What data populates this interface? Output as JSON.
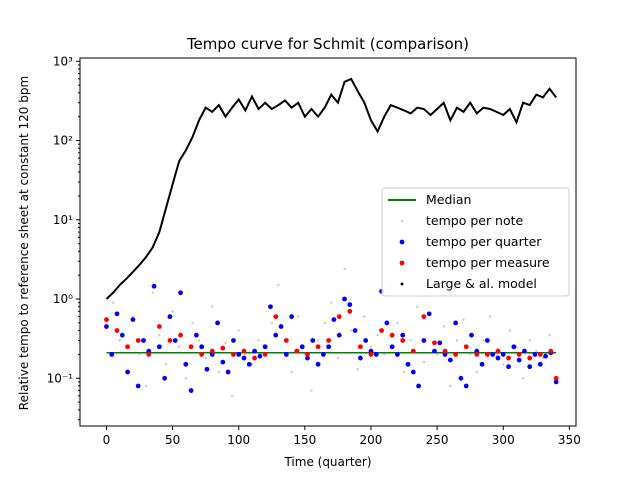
{
  "chart_data": {
    "type": "scatter",
    "title": "Tempo curve for Schmit (comparison)",
    "xlabel": "Time (quarter)",
    "ylabel": "Relative tempo to reference sheet at constant 120 bpm",
    "xlim": [
      -20,
      355
    ],
    "ylim": [
      0.025,
      1100
    ],
    "yscale": "log",
    "xticks": [
      0,
      50,
      100,
      150,
      200,
      250,
      300,
      350
    ],
    "xtick_labels": [
      "0",
      "50",
      "100",
      "150",
      "200",
      "250",
      "300",
      "350"
    ],
    "yticks": [
      0.1,
      1,
      10,
      100,
      1000
    ],
    "ytick_labels": [
      "10⁻¹",
      "10⁰",
      "10¹",
      "10²",
      "10³"
    ],
    "legend_position": "center-right",
    "median": 0.21,
    "series": [
      {
        "name": "Median",
        "kind": "line",
        "color": "#008000",
        "x": [
          0,
          340
        ],
        "y": [
          0.21,
          0.21
        ]
      },
      {
        "name": "tempo per note",
        "kind": "scatter",
        "color": "#c8c8c8",
        "x": [
          0,
          5,
          10,
          15,
          20,
          25,
          30,
          35,
          40,
          45,
          50,
          55,
          60,
          65,
          70,
          75,
          80,
          85,
          90,
          95,
          100,
          105,
          110,
          115,
          120,
          125,
          130,
          135,
          140,
          145,
          150,
          155,
          160,
          165,
          170,
          175,
          180,
          185,
          190,
          195,
          200,
          205,
          210,
          215,
          220,
          225,
          230,
          235,
          240,
          245,
          250,
          255,
          260,
          265,
          270,
          275,
          280,
          285,
          290,
          295,
          300,
          305,
          310,
          315,
          320,
          325,
          330,
          335,
          340
        ],
        "y": [
          0.5,
          0.9,
          0.3,
          0.12,
          0.6,
          0.2,
          0.08,
          1.2,
          0.35,
          0.15,
          0.7,
          0.25,
          0.1,
          0.5,
          0.3,
          0.18,
          0.8,
          0.12,
          0.28,
          0.06,
          0.4,
          0.2,
          0.15,
          0.3,
          0.2,
          0.5,
          1.5,
          0.3,
          0.12,
          0.6,
          0.2,
          0.07,
          0.3,
          0.5,
          0.9,
          0.18,
          2.4,
          0.4,
          0.13,
          0.6,
          0.25,
          0.35,
          0.2,
          1.5,
          0.5,
          0.12,
          0.3,
          0.8,
          0.16,
          1.2,
          0.2,
          0.45,
          0.08,
          0.3,
          0.55,
          0.2,
          0.12,
          0.3,
          0.6,
          0.2,
          0.15,
          0.4,
          0.25,
          0.1,
          0.3,
          0.22,
          0.18,
          0.35,
          0.1
        ]
      },
      {
        "name": "tempo per quarter",
        "kind": "scatter",
        "color": "#0000ff",
        "x": [
          0,
          4,
          8,
          12,
          16,
          20,
          24,
          28,
          32,
          36,
          40,
          44,
          48,
          52,
          56,
          60,
          64,
          68,
          72,
          76,
          80,
          84,
          88,
          92,
          96,
          100,
          104,
          108,
          112,
          116,
          120,
          124,
          128,
          132,
          136,
          140,
          144,
          148,
          152,
          156,
          160,
          164,
          168,
          172,
          176,
          180,
          184,
          188,
          192,
          196,
          200,
          204,
          208,
          212,
          216,
          220,
          224,
          228,
          232,
          236,
          240,
          244,
          248,
          252,
          256,
          260,
          264,
          268,
          272,
          276,
          280,
          284,
          288,
          292,
          296,
          300,
          304,
          308,
          312,
          316,
          320,
          324,
          328,
          332,
          336,
          340
        ],
        "y": [
          0.45,
          0.2,
          0.65,
          0.35,
          0.12,
          0.55,
          0.08,
          0.3,
          0.22,
          1.45,
          0.25,
          0.1,
          0.6,
          0.3,
          1.2,
          0.15,
          0.07,
          0.35,
          0.25,
          0.13,
          0.2,
          0.5,
          0.16,
          0.12,
          0.3,
          0.2,
          0.18,
          0.15,
          0.22,
          0.19,
          0.25,
          0.8,
          0.35,
          0.45,
          0.2,
          0.6,
          0.22,
          0.25,
          0.18,
          0.3,
          0.15,
          0.2,
          0.25,
          0.55,
          0.35,
          1.0,
          0.85,
          0.4,
          0.18,
          0.3,
          0.22,
          0.2,
          1.25,
          0.5,
          0.25,
          0.2,
          0.35,
          0.15,
          0.12,
          0.08,
          0.3,
          0.65,
          0.22,
          0.28,
          0.2,
          0.17,
          0.5,
          0.1,
          0.08,
          0.35,
          0.22,
          0.15,
          0.3,
          0.2,
          0.18,
          0.2,
          0.14,
          0.25,
          0.17,
          0.22,
          0.14,
          0.2,
          0.15,
          0.19,
          0.21,
          0.09
        ]
      },
      {
        "name": "tempo per measure",
        "kind": "scatter",
        "color": "#ff0000",
        "x": [
          0,
          8,
          16,
          24,
          32,
          40,
          48,
          56,
          64,
          72,
          80,
          88,
          96,
          104,
          112,
          120,
          128,
          136,
          144,
          152,
          160,
          168,
          176,
          184,
          192,
          200,
          208,
          216,
          224,
          232,
          240,
          248,
          256,
          264,
          272,
          280,
          288,
          296,
          304,
          312,
          320,
          328,
          336,
          340
        ],
        "y": [
          0.55,
          0.4,
          0.25,
          0.3,
          0.2,
          0.45,
          0.3,
          0.35,
          0.25,
          0.2,
          0.22,
          0.24,
          0.2,
          0.22,
          0.18,
          0.2,
          0.6,
          0.3,
          0.22,
          0.2,
          0.25,
          0.3,
          0.6,
          0.7,
          0.25,
          0.2,
          0.4,
          0.35,
          0.3,
          0.22,
          0.6,
          0.28,
          0.22,
          0.2,
          0.25,
          0.2,
          0.2,
          0.22,
          0.18,
          0.2,
          0.18,
          0.2,
          0.22,
          0.1
        ]
      },
      {
        "name": "Large & al. model",
        "kind": "line-dots",
        "color": "#000000",
        "x": [
          0,
          5,
          10,
          15,
          20,
          25,
          30,
          35,
          40,
          45,
          50,
          55,
          60,
          65,
          70,
          75,
          80,
          85,
          90,
          95,
          100,
          105,
          110,
          115,
          120,
          125,
          130,
          135,
          140,
          145,
          150,
          155,
          160,
          165,
          170,
          175,
          180,
          185,
          190,
          195,
          200,
          205,
          210,
          215,
          220,
          225,
          230,
          235,
          240,
          245,
          250,
          255,
          260,
          265,
          270,
          275,
          280,
          285,
          290,
          295,
          300,
          305,
          310,
          315,
          320,
          325,
          330,
          335,
          340
        ],
        "y": [
          1.0,
          1.2,
          1.5,
          1.8,
          2.2,
          2.7,
          3.4,
          4.5,
          7.0,
          14,
          28,
          55,
          75,
          110,
          180,
          260,
          230,
          280,
          200,
          260,
          330,
          240,
          360,
          250,
          300,
          250,
          280,
          320,
          260,
          300,
          200,
          250,
          200,
          260,
          380,
          300,
          550,
          600,
          420,
          300,
          180,
          130,
          200,
          280,
          260,
          240,
          220,
          260,
          250,
          210,
          250,
          300,
          180,
          260,
          230,
          300,
          220,
          260,
          250,
          230,
          210,
          250,
          170,
          300,
          280,
          380,
          350,
          450,
          350
        ]
      }
    ]
  }
}
